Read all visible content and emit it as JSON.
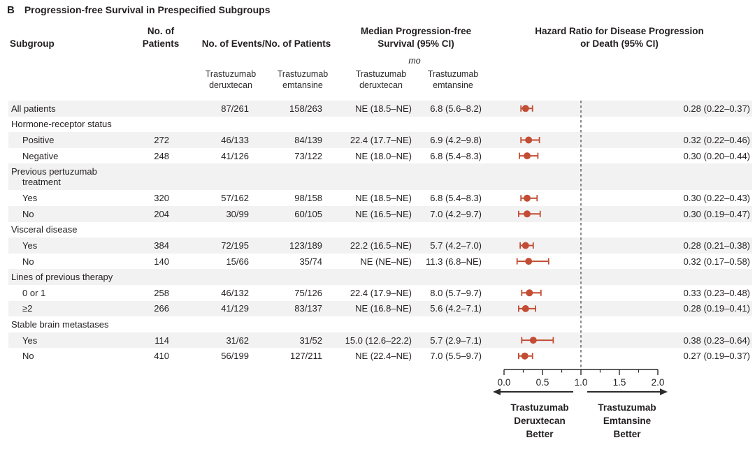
{
  "figure": {
    "panel": "B",
    "title": "Progression-free Survival in Prespecified Subgroups"
  },
  "table_headers": {
    "subgroup": "Subgroup",
    "patients_l1": "No. of",
    "patients_l2": "Patients",
    "events": "No. of Events/No. of Patients",
    "median_l1": "Median Progression-free",
    "median_l2": "Survival (95% CI)",
    "median_unit": "mo",
    "hr_l1": "Hazard Ratio for Disease Progression",
    "hr_l2": "or Death (95% CI)",
    "sub_columns": [
      {
        "l1": "Trastuzumab",
        "l2": "deruxtecan"
      },
      {
        "l1": "Trastuzumab",
        "l2": "emtansine"
      },
      {
        "l1": "Trastuzumab",
        "l2": "deruxtecan"
      },
      {
        "l1": "Trastuzumab",
        "l2": "emtansine"
      }
    ]
  },
  "colors": {
    "marker": "#c24d34",
    "stripe": "#f2f2f2",
    "text": "#231f20",
    "axis": "#2b2b2b",
    "reference_line": "#4a4a4a"
  },
  "chart_data": {
    "type": "forest",
    "panel": "B",
    "title": "Progression-free Survival in Prespecified Subgroups",
    "xlabel": "Hazard Ratio for Disease Progression or Death (95% CI)",
    "axis": {
      "min": 0.0,
      "max": 2.0,
      "major_ticks": [
        0.0,
        0.5,
        1.0,
        1.5,
        2.0
      ],
      "tick_labels": [
        "0.0",
        "0.5",
        "1.0",
        "1.5",
        "2.0"
      ],
      "minor_ticks": [
        0.25,
        0.75,
        1.25,
        1.75
      ],
      "reference_line": 1.0
    },
    "direction_labels": {
      "left_l1": "Trastuzumab",
      "left_l2": "Deruxtecan",
      "left_l3": "Better",
      "right_l1": "Trastuzumab",
      "right_l2": "Emtansine",
      "right_l3": "Better"
    },
    "rows": [
      {
        "label": "All patients",
        "indent": 0,
        "patients": "",
        "events_deruxtecan": "87/261",
        "events_emtansine": "158/263",
        "median_deruxtecan": "NE (18.5–NE)",
        "median_emtansine": "6.8 (5.6–8.2)",
        "hr": 0.28,
        "ci_low": 0.22,
        "ci_high": 0.37,
        "hr_text": "0.28 (0.22–0.37)",
        "shaded": true
      },
      {
        "label": "Hormone-receptor status",
        "group_header": true,
        "shaded": false
      },
      {
        "label": "Positive",
        "indent": 1,
        "patients": "272",
        "events_deruxtecan": "46/133",
        "events_emtansine": "84/139",
        "median_deruxtecan": "22.4 (17.7–NE)",
        "median_emtansine": "6.9 (4.2–9.8)",
        "hr": 0.32,
        "ci_low": 0.22,
        "ci_high": 0.46,
        "hr_text": "0.32 (0.22–0.46)",
        "shaded": true
      },
      {
        "label": "Negative",
        "indent": 1,
        "patients": "248",
        "events_deruxtecan": "41/126",
        "events_emtansine": "73/122",
        "median_deruxtecan": "NE (18.0–NE)",
        "median_emtansine": "6.8 (5.4–8.3)",
        "hr": 0.3,
        "ci_low": 0.2,
        "ci_high": 0.44,
        "hr_text": "0.30 (0.20–0.44)",
        "shaded": false
      },
      {
        "label": "Previous pertuzumab",
        "label2": "treatment",
        "group_header": true,
        "two_line": true,
        "shaded": true
      },
      {
        "label": "Yes",
        "indent": 1,
        "patients": "320",
        "events_deruxtecan": "57/162",
        "events_emtansine": "98/158",
        "median_deruxtecan": "NE (18.5–NE)",
        "median_emtansine": "6.8 (5.4–8.3)",
        "hr": 0.3,
        "ci_low": 0.22,
        "ci_high": 0.43,
        "hr_text": "0.30 (0.22–0.43)",
        "shaded": false
      },
      {
        "label": "No",
        "indent": 1,
        "patients": "204",
        "events_deruxtecan": "30/99",
        "events_emtansine": "60/105",
        "median_deruxtecan": "NE (16.5–NE)",
        "median_emtansine": "7.0 (4.2–9.7)",
        "hr": 0.3,
        "ci_low": 0.19,
        "ci_high": 0.47,
        "hr_text": "0.30 (0.19–0.47)",
        "shaded": true
      },
      {
        "label": "Visceral disease",
        "group_header": true,
        "shaded": false
      },
      {
        "label": "Yes",
        "indent": 1,
        "patients": "384",
        "events_deruxtecan": "72/195",
        "events_emtansine": "123/189",
        "median_deruxtecan": "22.2 (16.5–NE)",
        "median_emtansine": "5.7 (4.2–7.0)",
        "hr": 0.28,
        "ci_low": 0.21,
        "ci_high": 0.38,
        "hr_text": "0.28 (0.21–0.38)",
        "shaded": true
      },
      {
        "label": "No",
        "indent": 1,
        "patients": "140",
        "events_deruxtecan": "15/66",
        "events_emtansine": "35/74",
        "median_deruxtecan": "NE (NE–NE)",
        "median_emtansine": "11.3 (6.8–NE)",
        "hr": 0.32,
        "ci_low": 0.17,
        "ci_high": 0.58,
        "hr_text": "0.32 (0.17–0.58)",
        "shaded": false
      },
      {
        "label": "Lines of previous therapy",
        "group_header": true,
        "shaded": true
      },
      {
        "label": "0 or 1",
        "indent": 1,
        "patients": "258",
        "events_deruxtecan": "46/132",
        "events_emtansine": "75/126",
        "median_deruxtecan": "22.4 (17.9–NE)",
        "median_emtansine": "8.0 (5.7–9.7)",
        "hr": 0.33,
        "ci_low": 0.23,
        "ci_high": 0.48,
        "hr_text": "0.33 (0.23–0.48)",
        "shaded": false
      },
      {
        "label": "≥2",
        "indent": 1,
        "patients": "266",
        "events_deruxtecan": "41/129",
        "events_emtansine": "83/137",
        "median_deruxtecan": "NE (16.8–NE)",
        "median_emtansine": "5.6 (4.2–7.1)",
        "hr": 0.28,
        "ci_low": 0.19,
        "ci_high": 0.41,
        "hr_text": "0.28 (0.19–0.41)",
        "shaded": true
      },
      {
        "label": "Stable brain metastases",
        "group_header": true,
        "shaded": false
      },
      {
        "label": "Yes",
        "indent": 1,
        "patients": "114",
        "events_deruxtecan": "31/62",
        "events_emtansine": "31/52",
        "median_deruxtecan": "15.0 (12.6–22.2)",
        "median_emtansine": "5.7 (2.9–7.1)",
        "hr": 0.38,
        "ci_low": 0.23,
        "ci_high": 0.64,
        "hr_text": "0.38 (0.23–0.64)",
        "shaded": true
      },
      {
        "label": "No",
        "indent": 1,
        "patients": "410",
        "events_deruxtecan": "56/199",
        "events_emtansine": "127/211",
        "median_deruxtecan": "NE (22.4–NE)",
        "median_emtansine": "7.0 (5.5–9.7)",
        "hr": 0.27,
        "ci_low": 0.19,
        "ci_high": 0.37,
        "hr_text": "0.27 (0.19–0.37)",
        "shaded": false
      }
    ]
  }
}
